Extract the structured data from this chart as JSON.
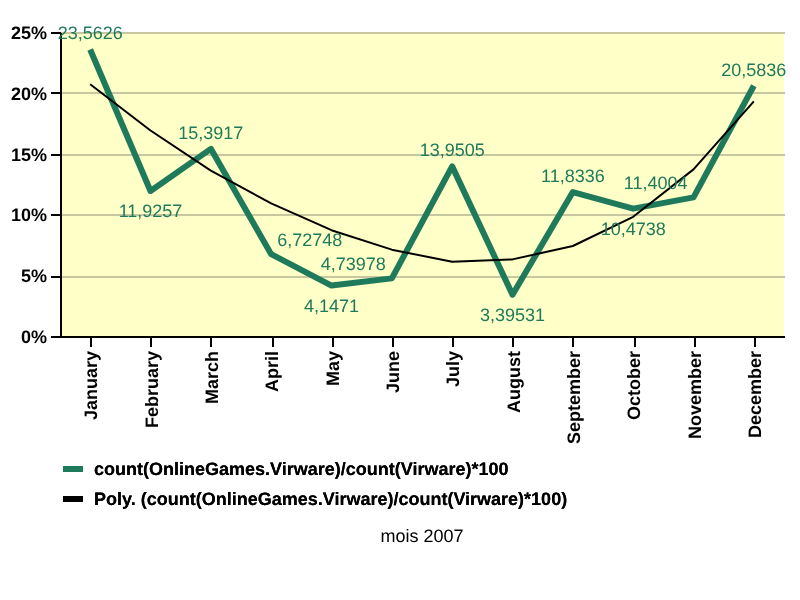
{
  "chart_data": {
    "type": "line",
    "annotations": [
      "mois 2007"
    ],
    "categories": [
      "January",
      "February",
      "March",
      "April",
      "May",
      "June",
      "July",
      "August",
      "September",
      "October",
      "November",
      "December"
    ],
    "series": [
      {
        "name": "count(OnlineGames.Virware)/count(Virware)*100",
        "color": "#1f7a5c",
        "values": [
          23.5626,
          11.9257,
          15.3917,
          6.72748,
          4.1471,
          4.73978,
          13.9505,
          3.39531,
          11.8336,
          10.4738,
          11.4004,
          20.5836
        ],
        "value_labels": [
          "23,5626",
          "11,9257",
          "15,3917",
          "6,72748",
          "4,1471",
          "4,73978",
          "13,9505",
          "3,39531",
          "11,8336",
          "10,4738",
          "11,4004",
          "20,5836"
        ]
      },
      {
        "name": "Poly. (count(OnlineGames.Virware)/count(Virware)*100)",
        "type": "line",
        "color": "#000000",
        "values": [
          20.7,
          16.9,
          13.6,
          10.9,
          8.7,
          7.1,
          6.1,
          6.3,
          7.4,
          9.8,
          13.7,
          19.3
        ]
      }
    ],
    "ylim": [
      0,
      25
    ],
    "yticks": [
      {
        "value": 0,
        "label": "0%"
      },
      {
        "value": 5,
        "label": "5%"
      },
      {
        "value": 10,
        "label": "10%"
      },
      {
        "value": 15,
        "label": "15%"
      },
      {
        "value": 20,
        "label": "20%"
      },
      {
        "value": 25,
        "label": "25%"
      }
    ],
    "grid": "y",
    "legend": "bottom"
  }
}
